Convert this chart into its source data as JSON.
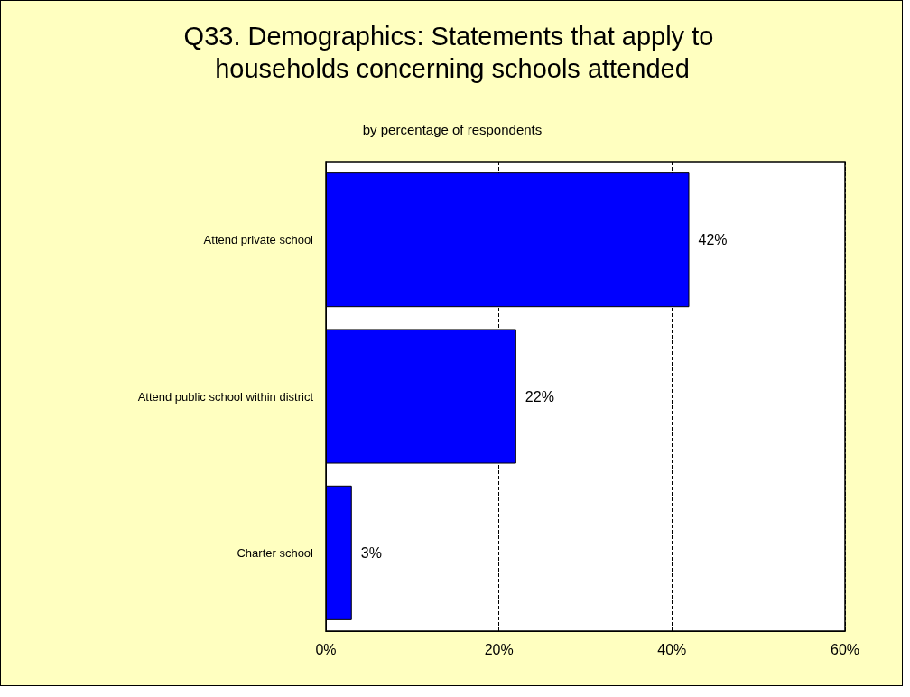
{
  "chart_data": {
    "type": "bar",
    "orientation": "horizontal",
    "title": "Q33. Demographics: Statements that apply to households concerning schools attended",
    "subtitle": "by percentage of respondents",
    "categories": [
      "Attend private school",
      "Attend public school within district",
      "Charter school"
    ],
    "values": [
      42,
      22,
      3
    ],
    "value_labels": [
      "42%",
      "22%",
      "3%"
    ],
    "color": "#0000ff",
    "xlim": [
      0,
      60
    ],
    "xticks": [
      {
        "value": 0,
        "label": "0%"
      },
      {
        "value": 20,
        "label": "20%"
      },
      {
        "value": 40,
        "label": "40%"
      },
      {
        "value": 60,
        "label": "60%"
      }
    ],
    "grid": "x"
  }
}
